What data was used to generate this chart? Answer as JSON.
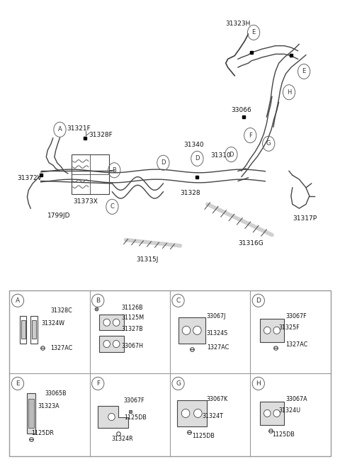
{
  "bg_color": "#ffffff",
  "line_color": "#444444",
  "text_color": "#111111",
  "fig_width": 4.8,
  "fig_height": 6.55,
  "dpi": 100,
  "parts": {
    "A": [
      "31328C",
      "31324W",
      "1327AC"
    ],
    "B": [
      "31126B",
      "31125M",
      "31327B",
      "33067H"
    ],
    "C": [
      "33067J",
      "31324S",
      "1327AC"
    ],
    "D": [
      "33067F",
      "31325F",
      "1327AC"
    ],
    "E": [
      "33065B",
      "31323A",
      "1125DR"
    ],
    "F": [
      "33067F",
      "1125DB",
      "31324R"
    ],
    "G": [
      "33067K",
      "31324T",
      "1125DB"
    ],
    "H": [
      "33067A",
      "31324U",
      "1125DB"
    ]
  }
}
